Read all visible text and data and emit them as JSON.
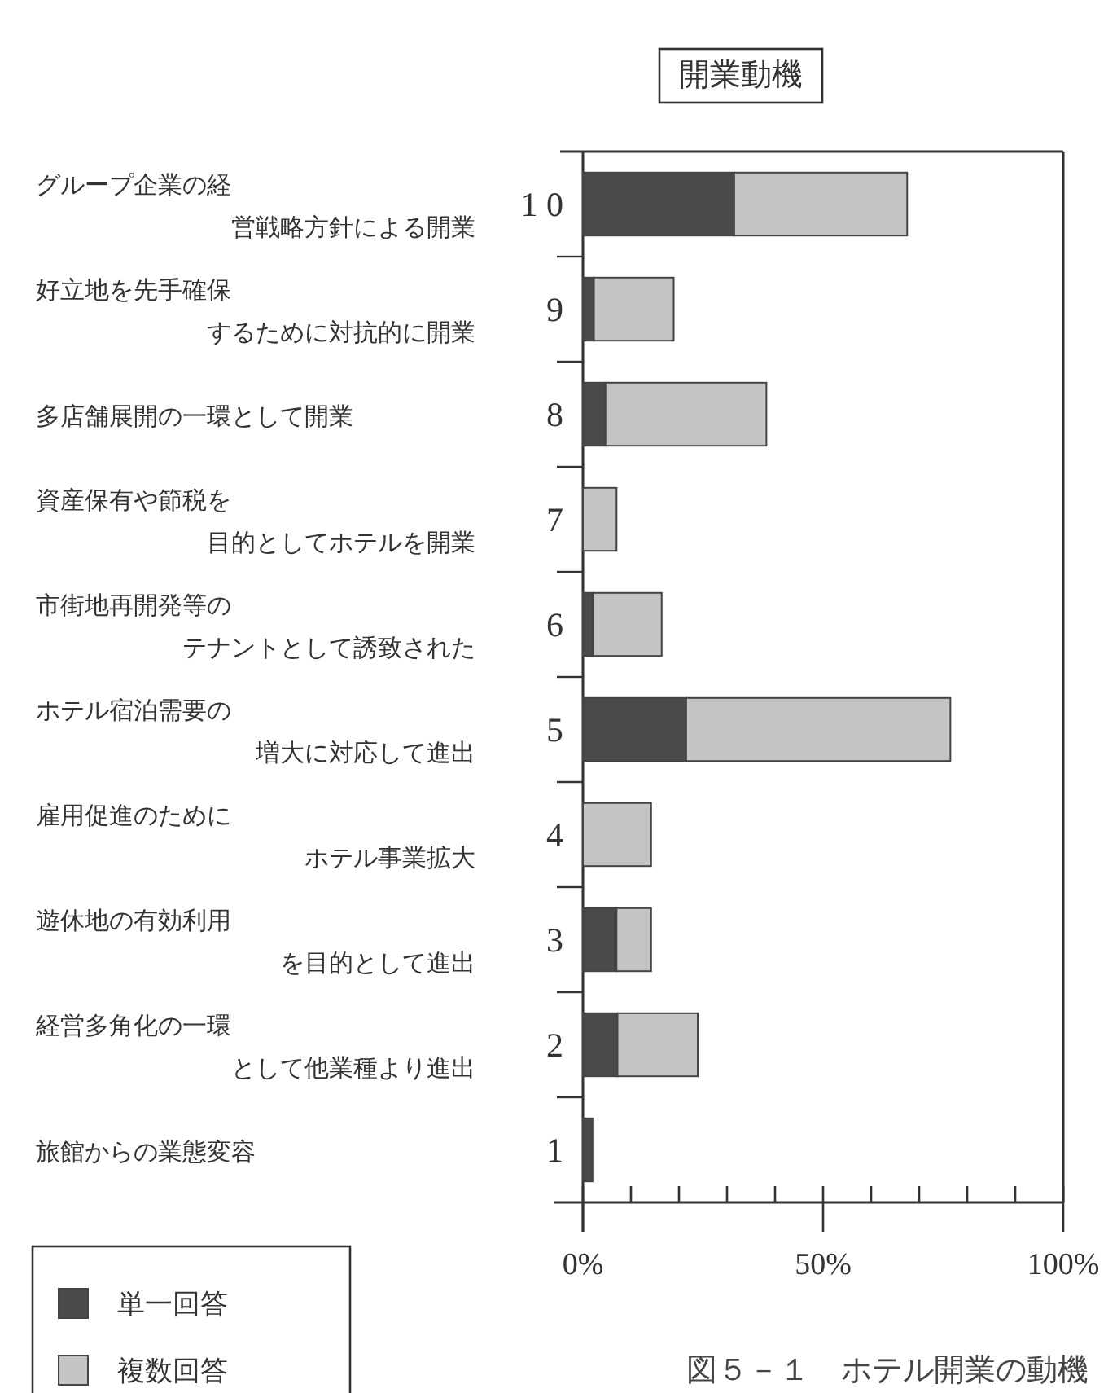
{
  "chart_data": {
    "type": "bar",
    "orientation": "horizontal",
    "stacked": true,
    "title": "開業動機",
    "categories": [
      "1 0",
      "9",
      "8",
      "7",
      "6",
      "5",
      "4",
      "3",
      "2",
      "1"
    ],
    "series": [
      {
        "name": "単一回答",
        "color": "#4a4a4a",
        "values": [
          31.5,
          2.3,
          4.7,
          0,
          2.1,
          21.5,
          0,
          7,
          7.2,
          2
        ]
      },
      {
        "name": "複数回答",
        "color": "#c4c4c4",
        "values": [
          36,
          16.6,
          33.5,
          7,
          14.3,
          55,
          14.2,
          7.2,
          16.7,
          0
        ]
      }
    ],
    "xlim": [
      0,
      100
    ],
    "xticks": [
      {
        "value": 0,
        "label": "0%"
      },
      {
        "value": 10,
        "label": null
      },
      {
        "value": 20,
        "label": null
      },
      {
        "value": 30,
        "label": null
      },
      {
        "value": 40,
        "label": null
      },
      {
        "value": 50,
        "label": "50%"
      },
      {
        "value": 60,
        "label": null
      },
      {
        "value": 70,
        "label": null
      },
      {
        "value": 80,
        "label": null
      },
      {
        "value": 90,
        "label": null
      },
      {
        "value": 100,
        "label": "100%"
      }
    ],
    "legend": "bottom left",
    "annotations": [
      "グループ企業の経営戦略方針による開業",
      "好立地を先手確保するために対抗的に開業",
      "多店舗展開の一環として開業",
      "資産保有や節税を目的としてホテルを開業",
      "市街地再開発等のテナントとして誘致された",
      "ホテル宿泊需要の増大に対応して進出",
      "雇用促進のためにホテル事業拡大",
      "遊休地の有効利用を目的として進出",
      "経営多角化の一環として他業種より進出",
      "旅館からの業態変容",
      "図５－１　ホテル開業の動機"
    ]
  }
}
